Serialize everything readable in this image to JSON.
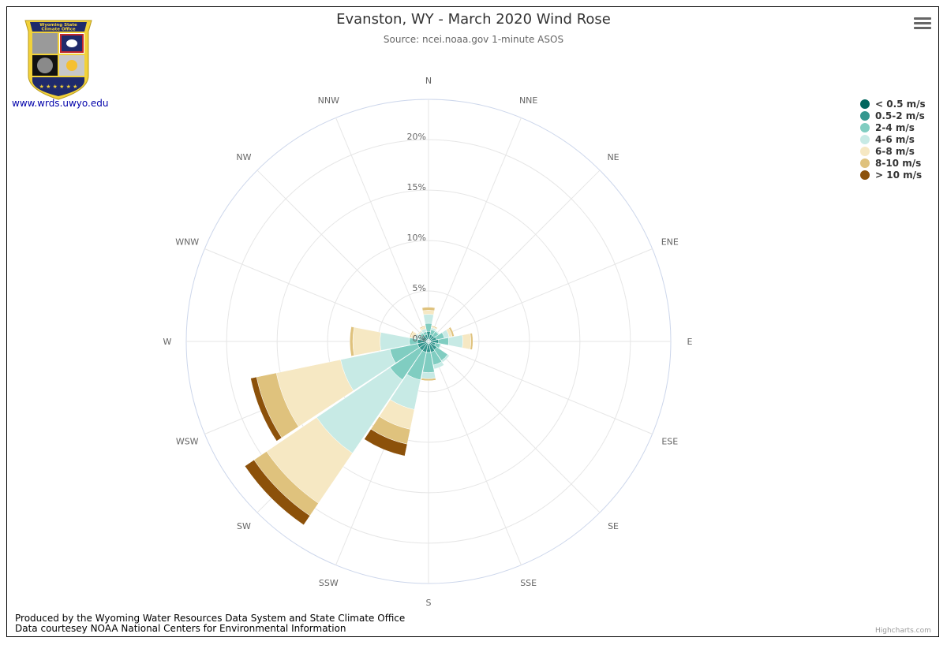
{
  "header": {
    "title": "Evanston, WY - March 2020 Wind Rose",
    "subtitle": "Source: ncei.noaa.gov 1-minute ASOS"
  },
  "logo": {
    "top_text": "Wyoming State Climate Office",
    "stars": "★ ★ ★ ★ ★ ★"
  },
  "site_link": "www.wrds.uwyo.edu",
  "footer": {
    "line1": "Produced by the Wyoming Water Resources Data System and State Climate Office",
    "line2": "Data courtesey NOAA National Centers for Environmental Information"
  },
  "credits": "Highcharts.com",
  "chart_data": {
    "type": "windrose",
    "title": "Evanston, WY - March 2020 Wind Rose",
    "subtitle": "Source: ncei.noaa.gov 1-minute ASOS",
    "categories": [
      "N",
      "NNE",
      "NE",
      "ENE",
      "E",
      "ESE",
      "SE",
      "SSE",
      "S",
      "SSW",
      "SW",
      "WSW",
      "W",
      "WNW",
      "NW",
      "NNW"
    ],
    "radial_ticks": [
      "0%",
      "5%",
      "10%",
      "15%",
      "20%"
    ],
    "radial_max": 24,
    "colors": [
      "#01665e",
      "#35978f",
      "#80cdc1",
      "#c7eae5",
      "#f6e8c3",
      "#dfc27d",
      "#8c510a"
    ],
    "series": [
      {
        "name": "< 0.5 m/s",
        "values": [
          0.2,
          0.2,
          0.2,
          0.2,
          0.2,
          0.2,
          0.2,
          0.2,
          0.2,
          0.2,
          0.2,
          0.2,
          0.2,
          0.2,
          0.2,
          0.2
        ]
      },
      {
        "name": "0.5-2 m/s",
        "values": [
          0.8,
          0.5,
          0.5,
          0.6,
          0.8,
          0.5,
          0.8,
          0.9,
          0.9,
          0.9,
          0.9,
          0.9,
          0.9,
          0.5,
          0.5,
          0.5
        ]
      },
      {
        "name": "2-4 m/s",
        "values": [
          0.8,
          0.5,
          0.5,
          0.8,
          1.0,
          0.5,
          1.3,
          1.3,
          2.0,
          2.8,
          3.5,
          2.8,
          0.8,
          0.3,
          0.3,
          0.3
        ]
      },
      {
        "name": "4-6 m/s",
        "values": [
          0.9,
          0.2,
          0.1,
          0.5,
          1.4,
          0.1,
          0.2,
          0.4,
          0.6,
          3.0,
          8.8,
          5.0,
          2.9,
          0.4,
          0.2,
          0.3
        ]
      },
      {
        "name": "6-8 m/s",
        "values": [
          0.4,
          0.1,
          0.0,
          0.3,
          0.8,
          0.0,
          0.0,
          0.0,
          0.0,
          2.0,
          6.0,
          6.5,
          2.7,
          0.4,
          0.1,
          0.2
        ]
      },
      {
        "name": "8-10 m/s",
        "values": [
          0.3,
          0.1,
          0.0,
          0.2,
          0.2,
          0.0,
          0.0,
          0.0,
          0.2,
          1.5,
          1.5,
          2.0,
          0.3,
          0.1,
          0.0,
          0.1
        ]
      },
      {
        "name": "> 10 m/s",
        "values": [
          0.0,
          0.0,
          0.0,
          0.0,
          0.0,
          0.0,
          0.0,
          0.0,
          0.0,
          1.2,
          1.1,
          0.6,
          0.0,
          0.0,
          0.0,
          0.0
        ]
      }
    ],
    "legend_position": "top-right",
    "grid": true
  }
}
